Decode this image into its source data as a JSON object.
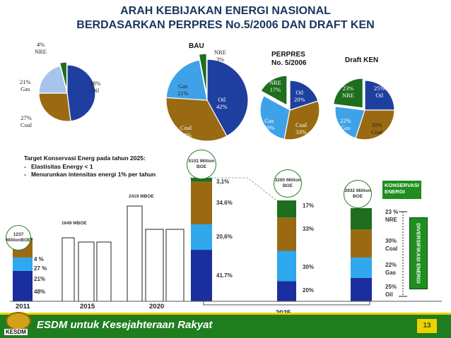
{
  "title_line1": "ARAH KEBIJAKAN ENERGI NASIONAL",
  "title_line2": "BERDASARKAN PERPRES No.5/2006 DAN DRAFT KEN",
  "pie_bau_small": {
    "slices": [
      {
        "label": "48% Oil",
        "value": 48,
        "color": "#1f3fa0"
      },
      {
        "label": "27% Coal",
        "value": 27,
        "color": "#9a6a12"
      },
      {
        "label": "21% Gas",
        "value": 21,
        "color": "#a7c4ec"
      },
      {
        "label": "4% NRE",
        "value": 4,
        "color": "#1e6e1e"
      }
    ]
  },
  "pie_bau": {
    "title": "BAU",
    "slices": [
      {
        "label": "Oil 42%",
        "value": 42,
        "color": "#1f3fa0"
      },
      {
        "label": "Coal 34%",
        "value": 34,
        "color": "#9a6a12"
      },
      {
        "label": "Gas 21%",
        "value": 21,
        "color": "#3fa2e8"
      },
      {
        "label": "NRE 3%",
        "value": 3,
        "color": "#1e6e1e"
      }
    ]
  },
  "pie_perpres": {
    "title_line1": "PERPRES",
    "title_line2": "No. 5/2006",
    "slices": [
      {
        "label": "Oil 20%",
        "value": 20,
        "color": "#1f3fa0"
      },
      {
        "label": "Coal 33%",
        "value": 33,
        "color": "#9a6a12"
      },
      {
        "label": "Gas 30%",
        "value": 30,
        "color": "#3fa2e8"
      },
      {
        "label": "NRE 17%",
        "value": 17,
        "color": "#1e6e1e"
      }
    ]
  },
  "pie_ken": {
    "title": "Draft KEN",
    "slices": [
      {
        "label": "25% Oil",
        "value": 25,
        "color": "#1f3fa0"
      },
      {
        "label": "30% Coal",
        "value": 30,
        "color": "#9a6a12"
      },
      {
        "label": "22% Gas",
        "value": 22,
        "color": "#3fa2e8"
      },
      {
        "label": "23% NRE",
        "value": 23,
        "color": "#1e6e1e"
      }
    ]
  },
  "target": {
    "heading": "Target Konservasi Energ pada tahun 2025:",
    "items": [
      "Elastisitas Energy < 1",
      "Menurunkan intensitas energi 1% per tahun"
    ],
    "bullet": "-"
  },
  "bubbles": {
    "b2011": "1237 MillionBOE",
    "bbau": "5102 Million BOE",
    "bper": "3200 Million BOE",
    "bken": "2932 Million BOE"
  },
  "bar_annot": {
    "a2015": "1649 MBOE",
    "a2020": "2419 MBOE"
  },
  "labels_2011": [
    "4 %",
    "27 %",
    "21%",
    "48%"
  ],
  "labels_bau": [
    "3,1%",
    "34.6%",
    "20,6%",
    "41.7%"
  ],
  "labels_per": [
    "17%",
    "33%",
    "30%",
    "20%"
  ],
  "labels_ken": [
    {
      "p": "23 %",
      "n": "NRE"
    },
    {
      "p": "30%",
      "n": "Coal"
    },
    {
      "p": "22%",
      "n": "Gas"
    },
    {
      "p": "25%",
      "n": "Oil"
    }
  ],
  "konservasi": "KONSERVASI ENERGI",
  "diversifikasi": "DIVERSIFIKASI ENERGI",
  "years": {
    "y2011": "2011",
    "y2015": "2015",
    "y2020": "2020",
    "y2025": "2025"
  },
  "footer_text": "ESDM untuk Kesejahteraan Rakyat",
  "logo_text": "KESDM",
  "page_number": "13",
  "chart_data": {
    "type": "bar",
    "categories": [
      "2011",
      "2015",
      "2020",
      "2025 BAU",
      "2025 PERPRES",
      "2025 KEN"
    ],
    "totals_mboe": {
      "2011": 1237,
      "2015": 1649,
      "2020": 2419,
      "2025 BAU": 5102,
      "2025 PERPRES": 3200,
      "2025 KEN": 2932
    },
    "series": [
      {
        "name": "Oil",
        "values": [
          48,
          null,
          null,
          41.7,
          20,
          25
        ]
      },
      {
        "name": "Gas",
        "values": [
          21,
          null,
          null,
          20.6,
          30,
          22
        ]
      },
      {
        "name": "Coal",
        "values": [
          27,
          null,
          null,
          34.6,
          33,
          30
        ]
      },
      {
        "name": "NRE",
        "values": [
          4,
          null,
          null,
          3.1,
          17,
          23
        ]
      }
    ]
  }
}
